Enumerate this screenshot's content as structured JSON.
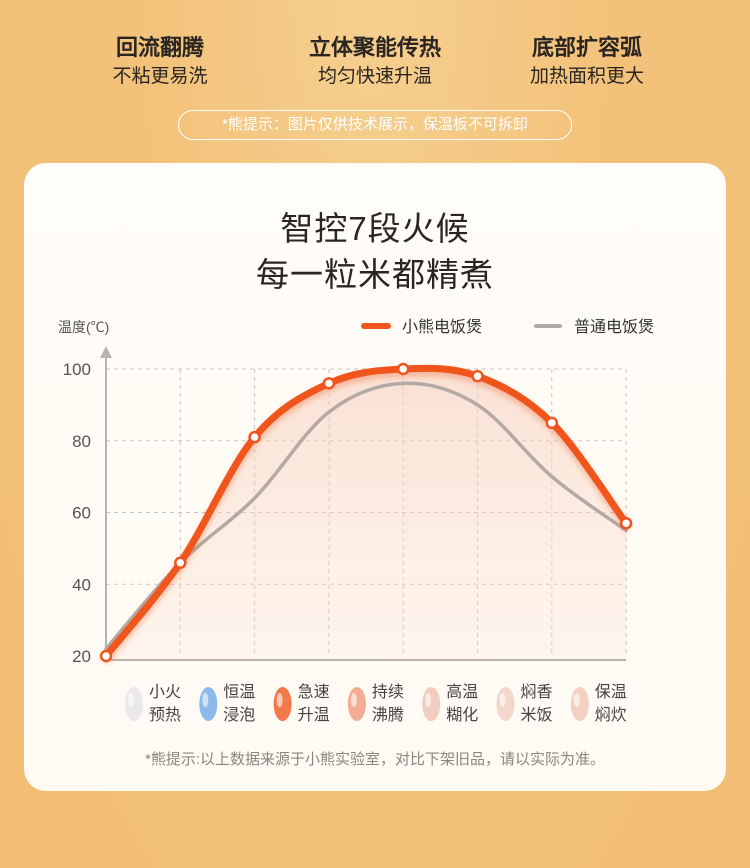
{
  "features": [
    {
      "title": "回流翻腾",
      "sub": "不粘更易洗"
    },
    {
      "title": "立体聚能传热",
      "sub": "均匀快速升温"
    },
    {
      "title": "底部扩容弧",
      "sub": "加热面积更大"
    }
  ],
  "notice": "*熊提示：图片仅供技术展示，保温板不可拆卸",
  "footnote": "*熊提示:以上数据来源于小熊实验室，对比下架旧品，请以实际为准。",
  "colors": {
    "accent": "#f0541f",
    "secondary": "#b3aaa6",
    "background": "#f3c27a"
  },
  "chart_data": {
    "type": "line",
    "title": [
      "智控7段火候",
      "每一粒米都精煮"
    ],
    "ylabel": "温度(℃)",
    "xlabel": "",
    "yticks": [
      20,
      40,
      60,
      80,
      100
    ],
    "ylim": [
      20,
      100
    ],
    "grid": true,
    "legend_position": "top-right",
    "categories": [
      "小火预热",
      "恒温浸泡",
      "急速升温",
      "持续沸腾",
      "高温糊化",
      "焖香米饭",
      "保温焖炊"
    ],
    "stages": [
      {
        "line1": "小火",
        "line2": "预热",
        "icon": "rice-grain-icon",
        "color": "#e8e6ea"
      },
      {
        "line1": "恒温",
        "line2": "浸泡",
        "icon": "water-rice-icon",
        "color": "#7fb2ea"
      },
      {
        "line1": "急速",
        "line2": "升温",
        "icon": "heat-waves-icon",
        "color": "#f06a3a"
      },
      {
        "line1": "持续",
        "line2": "沸腾",
        "icon": "boiling-arrows-icon",
        "color": "#f2a48a"
      },
      {
        "line1": "高温",
        "line2": "糊化",
        "icon": "swirl-rice-icon",
        "color": "#f1c7b8"
      },
      {
        "line1": "焖香",
        "line2": "米饭",
        "icon": "steam-rice-icon",
        "color": "#f3d2c6"
      },
      {
        "line1": "保温",
        "line2": "焖炊",
        "icon": "warm-rice-icon",
        "color": "#f3cbbd"
      }
    ],
    "series": [
      {
        "name": "小熊电饭煲",
        "color": "#f0541f",
        "points": [
          [
            0,
            20
          ],
          [
            1,
            46
          ],
          [
            2,
            81
          ],
          [
            3,
            96
          ],
          [
            4,
            100
          ],
          [
            5,
            98
          ],
          [
            6,
            85
          ],
          [
            7,
            57
          ]
        ]
      },
      {
        "name": "普通电饭煲",
        "color": "#b3aaa6",
        "points": [
          [
            0,
            22
          ],
          [
            1,
            46
          ],
          [
            2,
            64
          ],
          [
            3,
            88
          ],
          [
            4,
            96
          ],
          [
            5,
            90
          ],
          [
            6,
            70
          ],
          [
            7,
            55
          ]
        ]
      }
    ]
  }
}
